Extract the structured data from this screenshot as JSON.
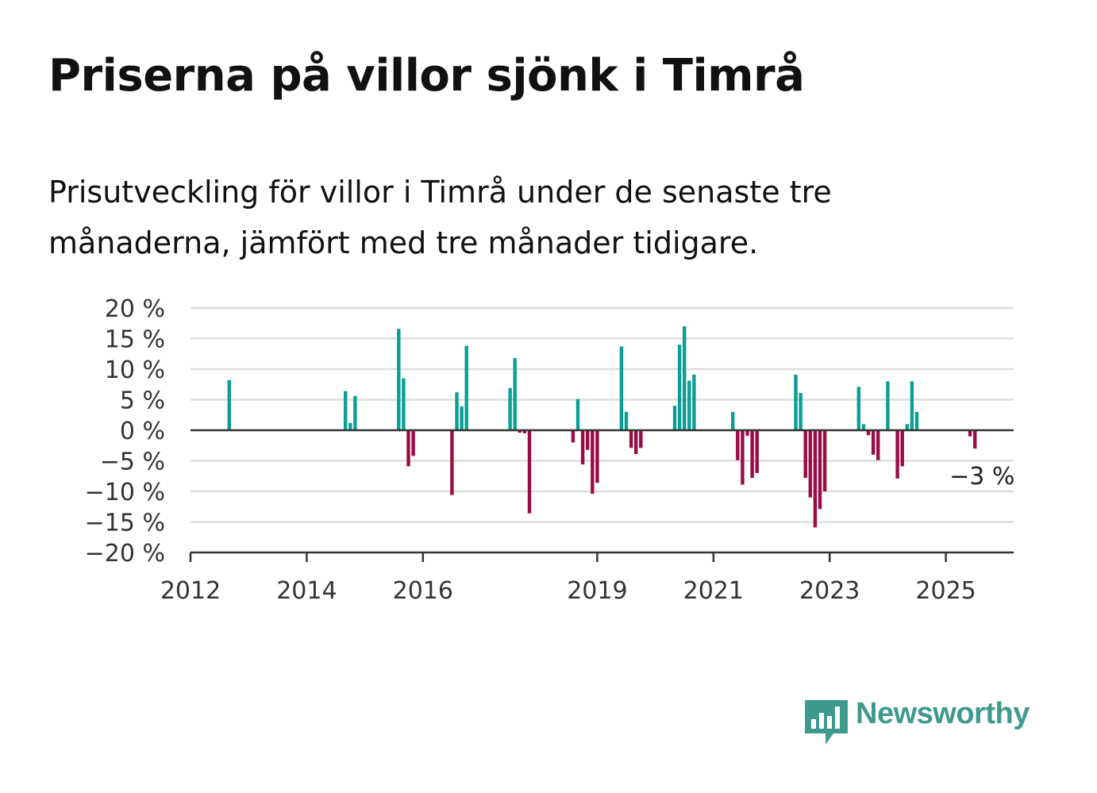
{
  "title": "Priserna på villor sjönk i Timrå",
  "subtitle": "Prisutveckling för villor i Timrå under de senaste tre månaderna, jämfört med tre månader tidigare.",
  "brand": {
    "name": "Newsworthy",
    "color": "#3f9a8e",
    "icon": "newsworthy-chart-bubble-icon"
  },
  "colors": {
    "positive": "#0a9e95",
    "negative": "#9b0b45",
    "grid": "#dddddd",
    "axis": "#333333"
  },
  "chart_data": {
    "type": "bar",
    "ylim": [
      -20,
      20
    ],
    "y_ticks": [
      {
        "value": 20,
        "label": "20 %"
      },
      {
        "value": 15,
        "label": "15 %"
      },
      {
        "value": 10,
        "label": "10 %"
      },
      {
        "value": 5,
        "label": "5 %"
      },
      {
        "value": 0,
        "label": "0 %"
      },
      {
        "value": -5,
        "label": "−5 %"
      },
      {
        "value": -10,
        "label": "−10 %"
      },
      {
        "value": -15,
        "label": "−15 %"
      },
      {
        "value": -20,
        "label": "−20 %"
      }
    ],
    "xlim": [
      "2012-01",
      "2026-03"
    ],
    "x_ticks": [
      {
        "value": "2012-01",
        "label": "2012"
      },
      {
        "value": "2014-01",
        "label": "2014"
      },
      {
        "value": "2016-01",
        "label": "2016"
      },
      {
        "value": "2019-01",
        "label": "2019"
      },
      {
        "value": "2021-01",
        "label": "2021"
      },
      {
        "value": "2023-01",
        "label": "2023"
      },
      {
        "value": "2025-01",
        "label": "2025"
      }
    ],
    "grid": true,
    "annotation": {
      "text": "−3 %",
      "month": "2025-09",
      "value": -3
    },
    "x": [
      "2012-09",
      "2014-09",
      "2014-10",
      "2014-11",
      "2015-08",
      "2015-09",
      "2015-10",
      "2015-11",
      "2016-07",
      "2016-08",
      "2016-09",
      "2016-10",
      "2017-07",
      "2017-08",
      "2017-09",
      "2017-10",
      "2017-11",
      "2018-08",
      "2018-09",
      "2018-10",
      "2018-11",
      "2018-12",
      "2019-01",
      "2019-06",
      "2019-07",
      "2019-08",
      "2019-09",
      "2019-10",
      "2020-05",
      "2020-06",
      "2020-07",
      "2020-08",
      "2020-09",
      "2021-05",
      "2021-06",
      "2021-07",
      "2021-08",
      "2021-09",
      "2021-10",
      "2022-06",
      "2022-07",
      "2022-08",
      "2022-09",
      "2022-10",
      "2022-11",
      "2022-12",
      "2023-07",
      "2023-08",
      "2023-09",
      "2023-10",
      "2023-11",
      "2024-01",
      "2024-03",
      "2024-04",
      "2024-05",
      "2024-06",
      "2024-07",
      "2025-06",
      "2025-07"
    ],
    "values": [
      8.2,
      6.4,
      1.2,
      5.6,
      16.6,
      8.5,
      -5.9,
      -4.2,
      -10.6,
      6.2,
      3.9,
      13.8,
      6.9,
      11.8,
      -0.4,
      -0.5,
      -13.6,
      -2.0,
      5.1,
      -5.6,
      -3.2,
      -10.4,
      -8.6,
      13.7,
      3.0,
      -2.9,
      -3.9,
      -2.9,
      4.0,
      14.0,
      17.0,
      8.1,
      9.1,
      3.0,
      -4.9,
      -8.9,
      -0.9,
      -7.8,
      -7.0,
      9.1,
      6.1,
      -7.8,
      -11.0,
      -15.9,
      -12.9,
      -10.0,
      7.1,
      1.0,
      -0.8,
      -4.0,
      -4.9,
      8.0,
      -7.9,
      -5.9,
      1.0,
      8.0,
      3.0,
      -1.0,
      -3.0
    ]
  }
}
